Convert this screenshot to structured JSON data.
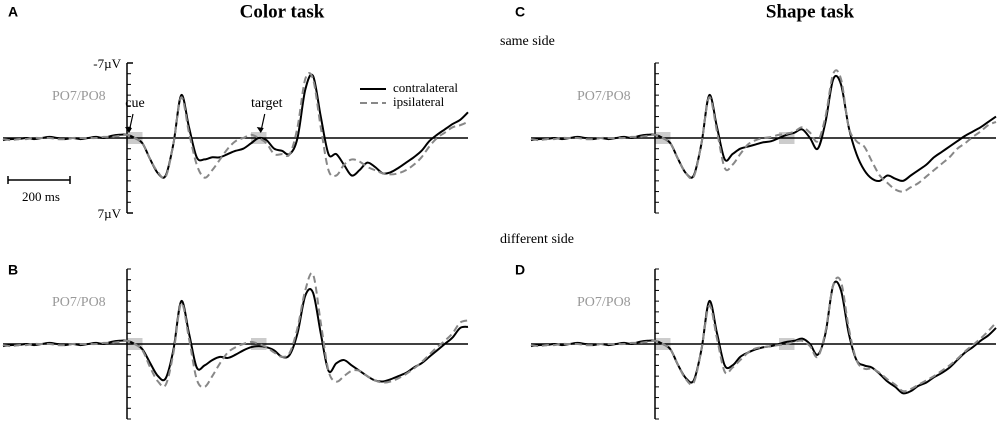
{
  "chart_data": [
    {
      "type": "line",
      "panel": "A",
      "title": "Color task",
      "channel": "PO7/PO8",
      "legend": true,
      "annotations": [
        {
          "text": "cue",
          "at": 0
        },
        {
          "text": "target",
          "at": 425
        }
      ],
      "scale_bar": {
        "label": "200 ms",
        "length": 200
      },
      "xlim": [
        -400,
        1100
      ],
      "ylim": [
        7,
        -7
      ],
      "yticks": [
        {
          "value": -7,
          "label": "-7µV"
        },
        {
          "value": 7,
          "label": "7µV"
        }
      ],
      "minor_yticks": [
        -6,
        -5,
        -4,
        -3,
        -2,
        -1,
        0,
        1,
        2,
        3,
        4,
        5,
        6
      ],
      "shaded": [
        [
          0,
          50
        ],
        [
          400,
          450
        ]
      ],
      "x": [
        -400,
        -375,
        -350,
        -325,
        -300,
        -275,
        -250,
        -225,
        -200,
        -175,
        -150,
        -125,
        -100,
        -75,
        -50,
        -25,
        0,
        25,
        50,
        75,
        100,
        125,
        150,
        175,
        200,
        225,
        250,
        275,
        300,
        325,
        350,
        375,
        400,
        425,
        450,
        475,
        500,
        525,
        550,
        575,
        600,
        625,
        650,
        675,
        700,
        725,
        750,
        775,
        800,
        825,
        850,
        875,
        900,
        925,
        950,
        975,
        1000,
        1025,
        1050,
        1075,
        1100
      ],
      "series": [
        {
          "name": "contralateral",
          "color": "#000000",
          "dash": false,
          "values": [
            0.2,
            0.1,
            0.1,
            0,
            0.1,
            0,
            -0.1,
            0,
            0.1,
            0,
            0.1,
            0,
            -0.1,
            0,
            -0.2,
            -0.3,
            -0.3,
            0,
            0.5,
            2,
            3.3,
            3.5,
            0.5,
            -4,
            -1,
            1.8,
            2,
            1.8,
            1.8,
            1.5,
            1.2,
            1,
            0.5,
            0,
            0.2,
            1,
            1.2,
            1.5,
            0,
            -4.5,
            -5.8,
            -2,
            1.5,
            1.5,
            2.5,
            3.5,
            3,
            2.3,
            2.7,
            3.3,
            3.2,
            2.8,
            2.3,
            1.8,
            1.2,
            0.3,
            -0.3,
            -0.8,
            -1.3,
            -1.7,
            -2.4
          ]
        },
        {
          "name": "ipsilateral",
          "color": "#888888",
          "dash": true,
          "values": [
            0.1,
            0.2,
            0.1,
            0.1,
            0,
            0,
            0,
            0.1,
            0.1,
            0,
            0,
            0,
            0,
            -0.1,
            -0.1,
            -0.2,
            -0.3,
            0,
            0.5,
            2,
            3.2,
            3.6,
            0.5,
            -3.8,
            -0.5,
            2.5,
            3.7,
            3,
            2,
            1,
            0.3,
            0,
            -0.3,
            0,
            0.5,
            1.5,
            1.5,
            1.5,
            -1,
            -5.5,
            -5.5,
            -1,
            3,
            3.5,
            2.5,
            2,
            2.2,
            2.7,
            3,
            3.3,
            3.4,
            3.3,
            3,
            2.5,
            1.8,
            0.8,
            0,
            -0.5,
            -1,
            -1.2,
            -1.5
          ]
        }
      ]
    },
    {
      "type": "line",
      "panel": "B",
      "channel": "PO7/PO8",
      "legend": false,
      "xlim": [
        -400,
        1100
      ],
      "ylim": [
        7,
        -7
      ],
      "minor_yticks": [
        -7,
        -6,
        -5,
        -4,
        -3,
        -2,
        -1,
        0,
        1,
        2,
        3,
        4,
        5,
        6,
        7
      ],
      "shaded": [
        [
          0,
          50
        ],
        [
          400,
          450
        ]
      ],
      "x": [
        -400,
        -375,
        -350,
        -325,
        -300,
        -275,
        -250,
        -225,
        -200,
        -175,
        -150,
        -125,
        -100,
        -75,
        -50,
        -25,
        0,
        25,
        50,
        75,
        100,
        125,
        150,
        175,
        200,
        225,
        250,
        275,
        300,
        325,
        350,
        375,
        400,
        425,
        450,
        475,
        500,
        525,
        550,
        575,
        600,
        625,
        650,
        675,
        700,
        725,
        750,
        775,
        800,
        825,
        850,
        875,
        900,
        925,
        950,
        975,
        1000,
        1025,
        1050,
        1075,
        1100
      ],
      "series": [
        {
          "color": "#000000",
          "dash": false,
          "values": [
            0.2,
            0.1,
            0.1,
            0,
            0.1,
            0,
            -0.1,
            0,
            0.1,
            0,
            0.1,
            0,
            -0.1,
            0,
            -0.2,
            -0.3,
            -0.3,
            0,
            0.5,
            1.8,
            3,
            3.2,
            0.5,
            -4,
            -1,
            2.2,
            2,
            1.5,
            1.2,
            1.3,
            1,
            0.6,
            0.3,
            0.2,
            0.3,
            0.6,
            1.2,
            1,
            -1,
            -4.5,
            -4.8,
            -1,
            2.5,
            1.8,
            1.5,
            2,
            2.5,
            3,
            3.4,
            3.5,
            3.3,
            3,
            2.7,
            2.2,
            1.8,
            1.2,
            0.6,
            0,
            -0.6,
            -1.5,
            -1.6
          ]
        },
        {
          "color": "#888888",
          "dash": true,
          "values": [
            0.1,
            0.2,
            0.1,
            0.1,
            0,
            0,
            0,
            0.1,
            0.1,
            0,
            0,
            0,
            0,
            -0.1,
            -0.1,
            -0.2,
            -0.3,
            0,
            0.6,
            2.2,
            3.5,
            3.8,
            0.8,
            -3.8,
            -0.5,
            3.3,
            4,
            3,
            1.8,
            0.8,
            0.3,
            0,
            -0.2,
            0,
            0.3,
            0.8,
            1.2,
            0.8,
            -1.5,
            -5,
            -6.5,
            -2,
            2.5,
            3.5,
            3,
            2.5,
            2.5,
            3,
            3.4,
            3.6,
            3.5,
            3.2,
            2.8,
            2.3,
            1.7,
            1,
            0.3,
            -0.3,
            -1,
            -2,
            -2.2
          ]
        }
      ]
    },
    {
      "type": "line",
      "panel": "C",
      "title": "Shape task",
      "annotation": "same side",
      "channel": "PO7/PO8",
      "legend": false,
      "xlim": [
        -400,
        1100
      ],
      "ylim": [
        7,
        -7
      ],
      "minor_yticks": [
        -7,
        -6,
        -5,
        -4,
        -3,
        -2,
        -1,
        0,
        1,
        2,
        3,
        4,
        5,
        6,
        7
      ],
      "shaded": [
        [
          0,
          50
        ],
        [
          400,
          450
        ]
      ],
      "x": [
        -400,
        -375,
        -350,
        -325,
        -300,
        -275,
        -250,
        -225,
        -200,
        -175,
        -150,
        -125,
        -100,
        -75,
        -50,
        -25,
        0,
        25,
        50,
        75,
        100,
        125,
        150,
        175,
        200,
        225,
        250,
        275,
        300,
        325,
        350,
        375,
        400,
        425,
        450,
        475,
        500,
        525,
        550,
        575,
        600,
        625,
        650,
        675,
        700,
        725,
        750,
        775,
        800,
        825,
        850,
        875,
        900,
        925,
        950,
        975,
        1000,
        1025,
        1050,
        1075,
        1100
      ],
      "series": [
        {
          "color": "#000000",
          "dash": false,
          "values": [
            0.2,
            0.1,
            0.1,
            0,
            0.1,
            0,
            -0.1,
            0,
            0.1,
            0,
            0.1,
            0,
            -0.1,
            0,
            -0.2,
            -0.3,
            -0.3,
            0,
            0.5,
            2,
            3.3,
            3.5,
            0.5,
            -4,
            -1,
            2,
            1.5,
            1,
            0.8,
            0.6,
            0.4,
            0.3,
            0,
            -0.3,
            -0.5,
            -0.8,
            0,
            1,
            -1.5,
            -5.5,
            -5,
            -1,
            1.5,
            3,
            3.8,
            4,
            3.5,
            3.8,
            4,
            3.5,
            3,
            2.5,
            1.8,
            1.3,
            0.8,
            0.3,
            -0.2,
            -0.6,
            -1,
            -1.5,
            -2
          ]
        },
        {
          "color": "#888888",
          "dash": true,
          "values": [
            0.1,
            0.2,
            0.1,
            0.1,
            0,
            0,
            0,
            0.1,
            0.1,
            0,
            0,
            0,
            0,
            -0.1,
            -0.1,
            -0.2,
            -0.3,
            0,
            0.5,
            2,
            3.3,
            3.6,
            0.5,
            -3.8,
            -0.6,
            2.8,
            2.5,
            1.5,
            0.6,
            0.2,
            0,
            -0.1,
            -0.3,
            -0.4,
            -0.6,
            -1,
            -0.5,
            0.3,
            -2,
            -6,
            -5.5,
            -1,
            0.3,
            0.8,
            2.2,
            3.5,
            4.2,
            4.8,
            5,
            4.6,
            4.2,
            3.6,
            3,
            2.4,
            1.8,
            1,
            0.5,
            -0.1,
            -0.6,
            -1.2,
            -1.5
          ]
        }
      ]
    },
    {
      "type": "line",
      "panel": "D",
      "annotation": "different side",
      "channel": "PO7/PO8",
      "legend": false,
      "xlim": [
        -400,
        1100
      ],
      "ylim": [
        7,
        -7
      ],
      "minor_yticks": [
        -7,
        -6,
        -5,
        -4,
        -3,
        -2,
        -1,
        0,
        1,
        2,
        3,
        4,
        5,
        6,
        7
      ],
      "shaded": [
        [
          0,
          50
        ],
        [
          400,
          450
        ]
      ],
      "x": [
        -400,
        -375,
        -350,
        -325,
        -300,
        -275,
        -250,
        -225,
        -200,
        -175,
        -150,
        -125,
        -100,
        -75,
        -50,
        -25,
        0,
        25,
        50,
        75,
        100,
        125,
        150,
        175,
        200,
        225,
        250,
        275,
        300,
        325,
        350,
        375,
        400,
        425,
        450,
        475,
        500,
        525,
        550,
        575,
        600,
        625,
        650,
        675,
        700,
        725,
        750,
        775,
        800,
        825,
        850,
        875,
        900,
        925,
        950,
        975,
        1000,
        1025,
        1050,
        1075,
        1100
      ],
      "series": [
        {
          "color": "#000000",
          "dash": false,
          "values": [
            0.2,
            0.1,
            0.1,
            0,
            0.1,
            0,
            -0.1,
            0,
            0.1,
            0,
            0.1,
            0,
            -0.1,
            0,
            -0.2,
            -0.3,
            -0.3,
            0,
            0.5,
            2,
            3.2,
            3.4,
            0.5,
            -4,
            -1,
            2,
            2,
            1.2,
            0.8,
            0.5,
            0.3,
            0.2,
            0,
            -0.2,
            -0.3,
            -0.5,
            0,
            1,
            -1,
            -5.5,
            -5,
            -1,
            1.5,
            2,
            2.2,
            2.8,
            3.5,
            4,
            4.6,
            4.4,
            3.9,
            3.6,
            3.1,
            2.7,
            2.2,
            1.5,
            0.8,
            0.3,
            -0.3,
            -0.8,
            -1.5
          ]
        },
        {
          "color": "#888888",
          "dash": true,
          "values": [
            0.1,
            0.2,
            0.1,
            0.1,
            0,
            0,
            0,
            0.1,
            0.1,
            0,
            0,
            0,
            0,
            -0.1,
            -0.1,
            -0.2,
            -0.3,
            0,
            0.5,
            2,
            3.3,
            3.6,
            0.5,
            -3.6,
            -0.5,
            2.6,
            2.2,
            1.5,
            0.8,
            0.4,
            0.3,
            0.2,
            0.1,
            0,
            -0.2,
            -0.3,
            0.2,
            1.2,
            -1.2,
            -5.5,
            -5.8,
            -1.5,
            1.5,
            2.3,
            2.3,
            2.7,
            3.3,
            3.8,
            4.4,
            4.2,
            3.8,
            3.4,
            3,
            2.5,
            2,
            1.4,
            0.7,
            0.1,
            -0.5,
            -1.2,
            -2
          ]
        }
      ]
    }
  ]
}
